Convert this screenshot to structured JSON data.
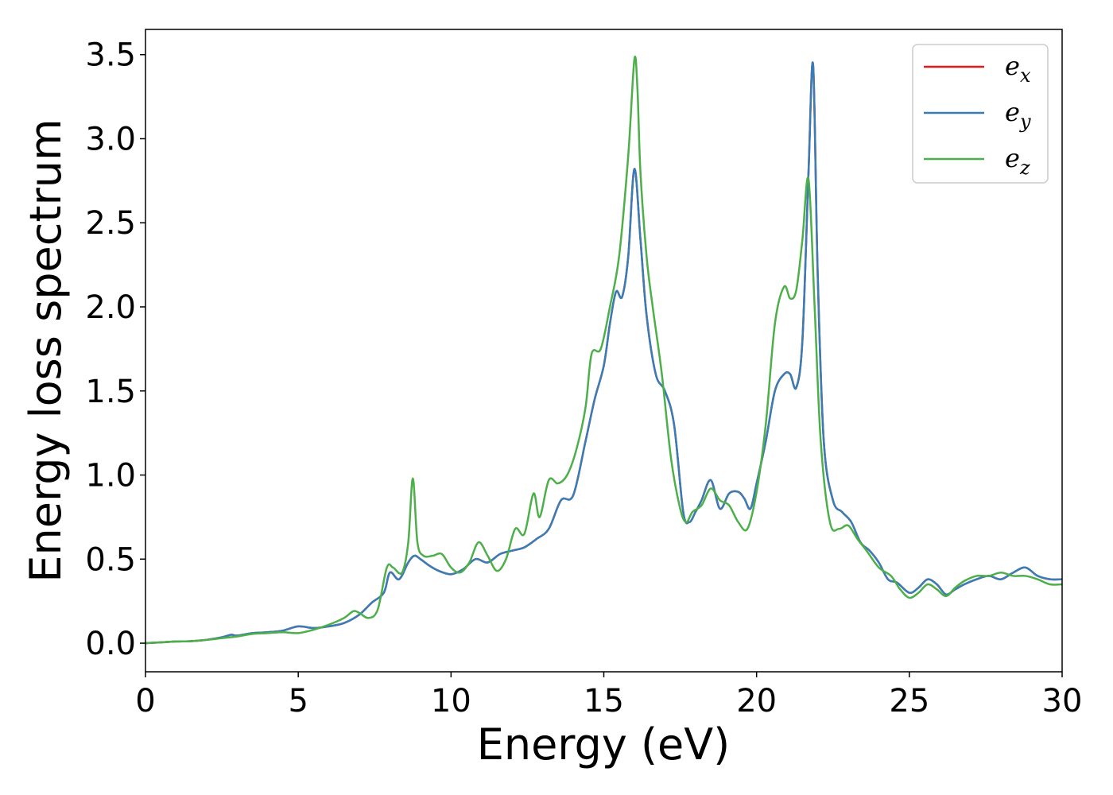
{
  "chart_data": {
    "type": "line",
    "title": "",
    "xlabel": "Energy (eV)",
    "ylabel": "Energy loss spectrum",
    "xlim": [
      0,
      30
    ],
    "ylim": [
      -0.17,
      3.65
    ],
    "xticks": [
      0,
      5,
      10,
      15,
      20,
      25,
      30
    ],
    "xtick_labels": [
      "0",
      "5",
      "10",
      "15",
      "20",
      "25",
      "30"
    ],
    "yticks": [
      0.0,
      0.5,
      1.0,
      1.5,
      2.0,
      2.5,
      3.0,
      3.5
    ],
    "ytick_labels": [
      "0.0",
      "0.5",
      "1.0",
      "1.5",
      "2.0",
      "2.5",
      "3.0",
      "3.5"
    ],
    "grid": false,
    "legend_position": "top-right",
    "series": [
      {
        "name": "e_x",
        "label_base": "e",
        "label_sub": "x",
        "color": "#e41a1c",
        "x": [
          0,
          0.5,
          1,
          1.5,
          2,
          2.5,
          2.8,
          3,
          3.5,
          4,
          4.5,
          5,
          5.5,
          6,
          6.5,
          7,
          7.4,
          7.8,
          8,
          8.3,
          8.6,
          8.8,
          9,
          9.3,
          9.6,
          10,
          10.4,
          10.8,
          11.2,
          11.6,
          12,
          12.4,
          12.8,
          13.2,
          13.6,
          14,
          14.4,
          14.7,
          15,
          15.2,
          15.4,
          15.6,
          15.8,
          16,
          16.2,
          16.4,
          16.7,
          17,
          17.3,
          17.6,
          17.8,
          18,
          18.2,
          18.5,
          18.8,
          19.1,
          19.4,
          19.6,
          19.8,
          20,
          20.3,
          20.6,
          20.9,
          21.1,
          21.3,
          21.5,
          21.7,
          21.85,
          22,
          22.2,
          22.5,
          22.8,
          23.1,
          23.4,
          23.7,
          24,
          24.3,
          24.6,
          25,
          25.3,
          25.6,
          25.9,
          26.2,
          26.5,
          26.8,
          27.2,
          27.6,
          28,
          28.4,
          28.8,
          29.2,
          29.6,
          30
        ],
        "y": [
          0,
          0.005,
          0.01,
          0.012,
          0.02,
          0.035,
          0.05,
          0.045,
          0.06,
          0.065,
          0.075,
          0.1,
          0.09,
          0.1,
          0.12,
          0.17,
          0.24,
          0.3,
          0.42,
          0.38,
          0.48,
          0.52,
          0.5,
          0.46,
          0.43,
          0.41,
          0.44,
          0.5,
          0.48,
          0.53,
          0.55,
          0.57,
          0.62,
          0.68,
          0.85,
          0.88,
          1.2,
          1.45,
          1.65,
          1.9,
          2.09,
          2.06,
          2.3,
          2.82,
          2.4,
          1.95,
          1.6,
          1.5,
          1.3,
          0.78,
          0.72,
          0.78,
          0.85,
          0.97,
          0.8,
          0.89,
          0.9,
          0.86,
          0.8,
          0.95,
          1.2,
          1.5,
          1.6,
          1.6,
          1.52,
          1.8,
          2.8,
          3.44,
          2.2,
          1.2,
          0.85,
          0.78,
          0.72,
          0.6,
          0.55,
          0.48,
          0.38,
          0.36,
          0.3,
          0.33,
          0.38,
          0.35,
          0.29,
          0.32,
          0.35,
          0.38,
          0.4,
          0.38,
          0.42,
          0.45,
          0.4,
          0.38,
          0.38
        ]
      },
      {
        "name": "e_y",
        "label_base": "e",
        "label_sub": "y",
        "color": "#377eb8",
        "x": [
          0,
          0.5,
          1,
          1.5,
          2,
          2.5,
          2.8,
          3,
          3.5,
          4,
          4.5,
          5,
          5.5,
          6,
          6.5,
          7,
          7.4,
          7.8,
          8,
          8.3,
          8.6,
          8.8,
          9,
          9.3,
          9.6,
          10,
          10.4,
          10.8,
          11.2,
          11.6,
          12,
          12.4,
          12.8,
          13.2,
          13.6,
          14,
          14.4,
          14.7,
          15,
          15.2,
          15.4,
          15.6,
          15.8,
          16,
          16.2,
          16.4,
          16.7,
          17,
          17.3,
          17.6,
          17.8,
          18,
          18.2,
          18.5,
          18.8,
          19.1,
          19.4,
          19.6,
          19.8,
          20,
          20.3,
          20.6,
          20.9,
          21.1,
          21.3,
          21.5,
          21.7,
          21.85,
          22,
          22.2,
          22.5,
          22.8,
          23.1,
          23.4,
          23.7,
          24,
          24.3,
          24.6,
          25,
          25.3,
          25.6,
          25.9,
          26.2,
          26.5,
          26.8,
          27.2,
          27.6,
          28,
          28.4,
          28.8,
          29.2,
          29.6,
          30
        ],
        "y": [
          0,
          0.005,
          0.01,
          0.012,
          0.02,
          0.035,
          0.05,
          0.045,
          0.06,
          0.065,
          0.075,
          0.1,
          0.09,
          0.1,
          0.12,
          0.17,
          0.24,
          0.3,
          0.42,
          0.38,
          0.48,
          0.52,
          0.5,
          0.46,
          0.43,
          0.41,
          0.44,
          0.5,
          0.48,
          0.53,
          0.55,
          0.57,
          0.62,
          0.68,
          0.85,
          0.88,
          1.2,
          1.45,
          1.65,
          1.9,
          2.09,
          2.06,
          2.3,
          2.82,
          2.4,
          1.95,
          1.6,
          1.5,
          1.3,
          0.78,
          0.72,
          0.78,
          0.85,
          0.97,
          0.8,
          0.89,
          0.9,
          0.86,
          0.8,
          0.95,
          1.2,
          1.5,
          1.6,
          1.6,
          1.52,
          1.8,
          2.8,
          3.44,
          2.2,
          1.2,
          0.85,
          0.78,
          0.72,
          0.6,
          0.55,
          0.48,
          0.38,
          0.36,
          0.3,
          0.33,
          0.38,
          0.35,
          0.29,
          0.32,
          0.35,
          0.38,
          0.4,
          0.38,
          0.42,
          0.45,
          0.4,
          0.38,
          0.38
        ]
      },
      {
        "name": "e_z",
        "label_base": "e",
        "label_sub": "z",
        "color": "#4daf4a",
        "x": [
          0,
          0.5,
          1,
          1.5,
          2,
          2.5,
          3,
          3.5,
          4,
          4.5,
          5,
          5.5,
          6,
          6.5,
          6.8,
          7,
          7.3,
          7.6,
          7.9,
          8.1,
          8.4,
          8.6,
          8.75,
          8.9,
          9.1,
          9.4,
          9.7,
          10,
          10.3,
          10.6,
          10.9,
          11.2,
          11.5,
          11.8,
          12.1,
          12.4,
          12.7,
          12.9,
          13.2,
          13.5,
          13.8,
          14.1,
          14.4,
          14.6,
          14.9,
          15.2,
          15.5,
          15.8,
          16,
          16.1,
          16.2,
          16.4,
          16.6,
          16.9,
          17.2,
          17.5,
          17.7,
          17.9,
          18.2,
          18.5,
          18.8,
          19.1,
          19.4,
          19.7,
          20,
          20.3,
          20.6,
          20.9,
          21.1,
          21.3,
          21.5,
          21.7,
          21.9,
          22.1,
          22.4,
          22.7,
          23,
          23.3,
          23.6,
          24,
          24.4,
          24.7,
          25,
          25.3,
          25.6,
          25.9,
          26.2,
          26.5,
          26.8,
          27.2,
          27.6,
          28,
          28.4,
          28.8,
          29.2,
          29.6,
          30
        ],
        "y": [
          0,
          0.005,
          0.01,
          0.012,
          0.02,
          0.03,
          0.04,
          0.055,
          0.06,
          0.065,
          0.06,
          0.08,
          0.11,
          0.15,
          0.19,
          0.18,
          0.15,
          0.2,
          0.45,
          0.45,
          0.42,
          0.6,
          0.98,
          0.6,
          0.52,
          0.52,
          0.53,
          0.45,
          0.42,
          0.48,
          0.6,
          0.52,
          0.43,
          0.5,
          0.68,
          0.65,
          0.89,
          0.75,
          0.97,
          0.95,
          1.0,
          1.15,
          1.4,
          1.72,
          1.75,
          2.0,
          2.3,
          2.9,
          3.47,
          3.3,
          2.8,
          2.3,
          2.0,
          1.6,
          1.1,
          0.8,
          0.72,
          0.78,
          0.82,
          0.92,
          0.85,
          0.82,
          0.72,
          0.68,
          0.9,
          1.3,
          1.9,
          2.12,
          2.05,
          2.1,
          2.4,
          2.76,
          2.0,
          1.2,
          0.72,
          0.68,
          0.7,
          0.62,
          0.55,
          0.45,
          0.4,
          0.32,
          0.27,
          0.3,
          0.35,
          0.32,
          0.28,
          0.33,
          0.37,
          0.4,
          0.4,
          0.42,
          0.4,
          0.4,
          0.38,
          0.35,
          0.35
        ]
      }
    ]
  }
}
